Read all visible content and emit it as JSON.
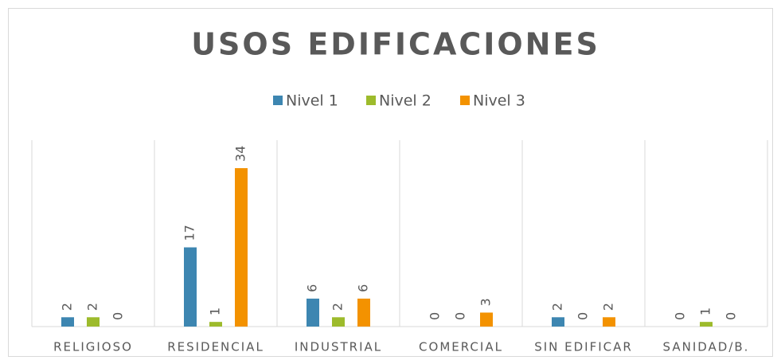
{
  "chart_data": {
    "type": "bar",
    "title": "USOS EDIFICACIONES",
    "categories": [
      "RELIGIOSO",
      "RESIDENCIAL",
      "INDUSTRIAL",
      "COMERCIAL",
      "SIN EDIFICAR",
      "SANIDAD/B."
    ],
    "series": [
      {
        "name": "Nivel 1",
        "color": "#3d86b1",
        "values": [
          2,
          17,
          6,
          0,
          2,
          0
        ]
      },
      {
        "name": "Nivel 2",
        "color": "#9dbb2c",
        "values": [
          2,
          1,
          2,
          0,
          0,
          1
        ]
      },
      {
        "name": "Nivel 3",
        "color": "#f39200",
        "values": [
          0,
          34,
          6,
          3,
          2,
          0
        ]
      }
    ],
    "ylim": [
      0,
      40
    ],
    "legend": "top"
  }
}
